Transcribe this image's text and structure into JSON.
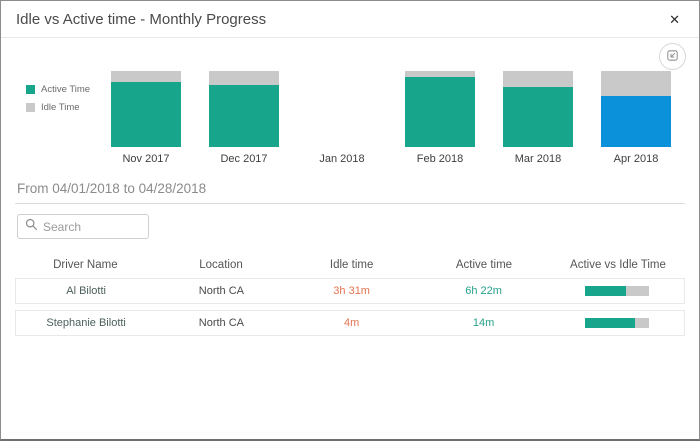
{
  "modal": {
    "title": "Idle vs Active time - Monthly Progress",
    "close_glyph": "✕"
  },
  "legend": {
    "active_label": "Active Time",
    "idle_label": "Idle Time"
  },
  "chart_data": {
    "type": "bar",
    "subtype": "stacked-100-percent",
    "title": "Idle vs Active time - Monthly Progress",
    "categories": [
      "Nov 2017",
      "Dec 2017",
      "Jan 2018",
      "Feb 2018",
      "Mar 2018",
      "Apr 2018"
    ],
    "series": [
      {
        "name": "Active Time",
        "color": "#17a58b",
        "values_pct": [
          86,
          81,
          0,
          92,
          79,
          67
        ]
      },
      {
        "name": "Idle Time",
        "color": "#c9c9c9",
        "values_pct": [
          14,
          19,
          0,
          8,
          21,
          33
        ]
      }
    ],
    "highlight": {
      "index": 5,
      "category": "Apr 2018",
      "color": "#0b91da"
    },
    "legend_position": "left",
    "grid": false,
    "y_axis": "hidden"
  },
  "period": {
    "label": "From 04/01/2018 to 04/28/2018"
  },
  "search": {
    "placeholder": "Search",
    "value": ""
  },
  "table": {
    "columns": [
      "Driver Name",
      "Location",
      "Idle time",
      "Active time",
      "Active vs Idle Time"
    ],
    "rows": [
      {
        "driver": "Al Bilotti",
        "location": "North CA",
        "idle_time": "3h 31m",
        "active_time": "6h 22m",
        "active_pct": 64
      },
      {
        "driver": "Stephanie Bilotti",
        "location": "North CA",
        "idle_time": "4m",
        "active_time": "14m",
        "active_pct": 78
      }
    ]
  },
  "colors": {
    "active_bar": "#17a58b",
    "idle_bar": "#c9c9c9",
    "selected_bar": "#0b91da",
    "idle_text": "#e4734f",
    "active_text": "#27a08a"
  }
}
